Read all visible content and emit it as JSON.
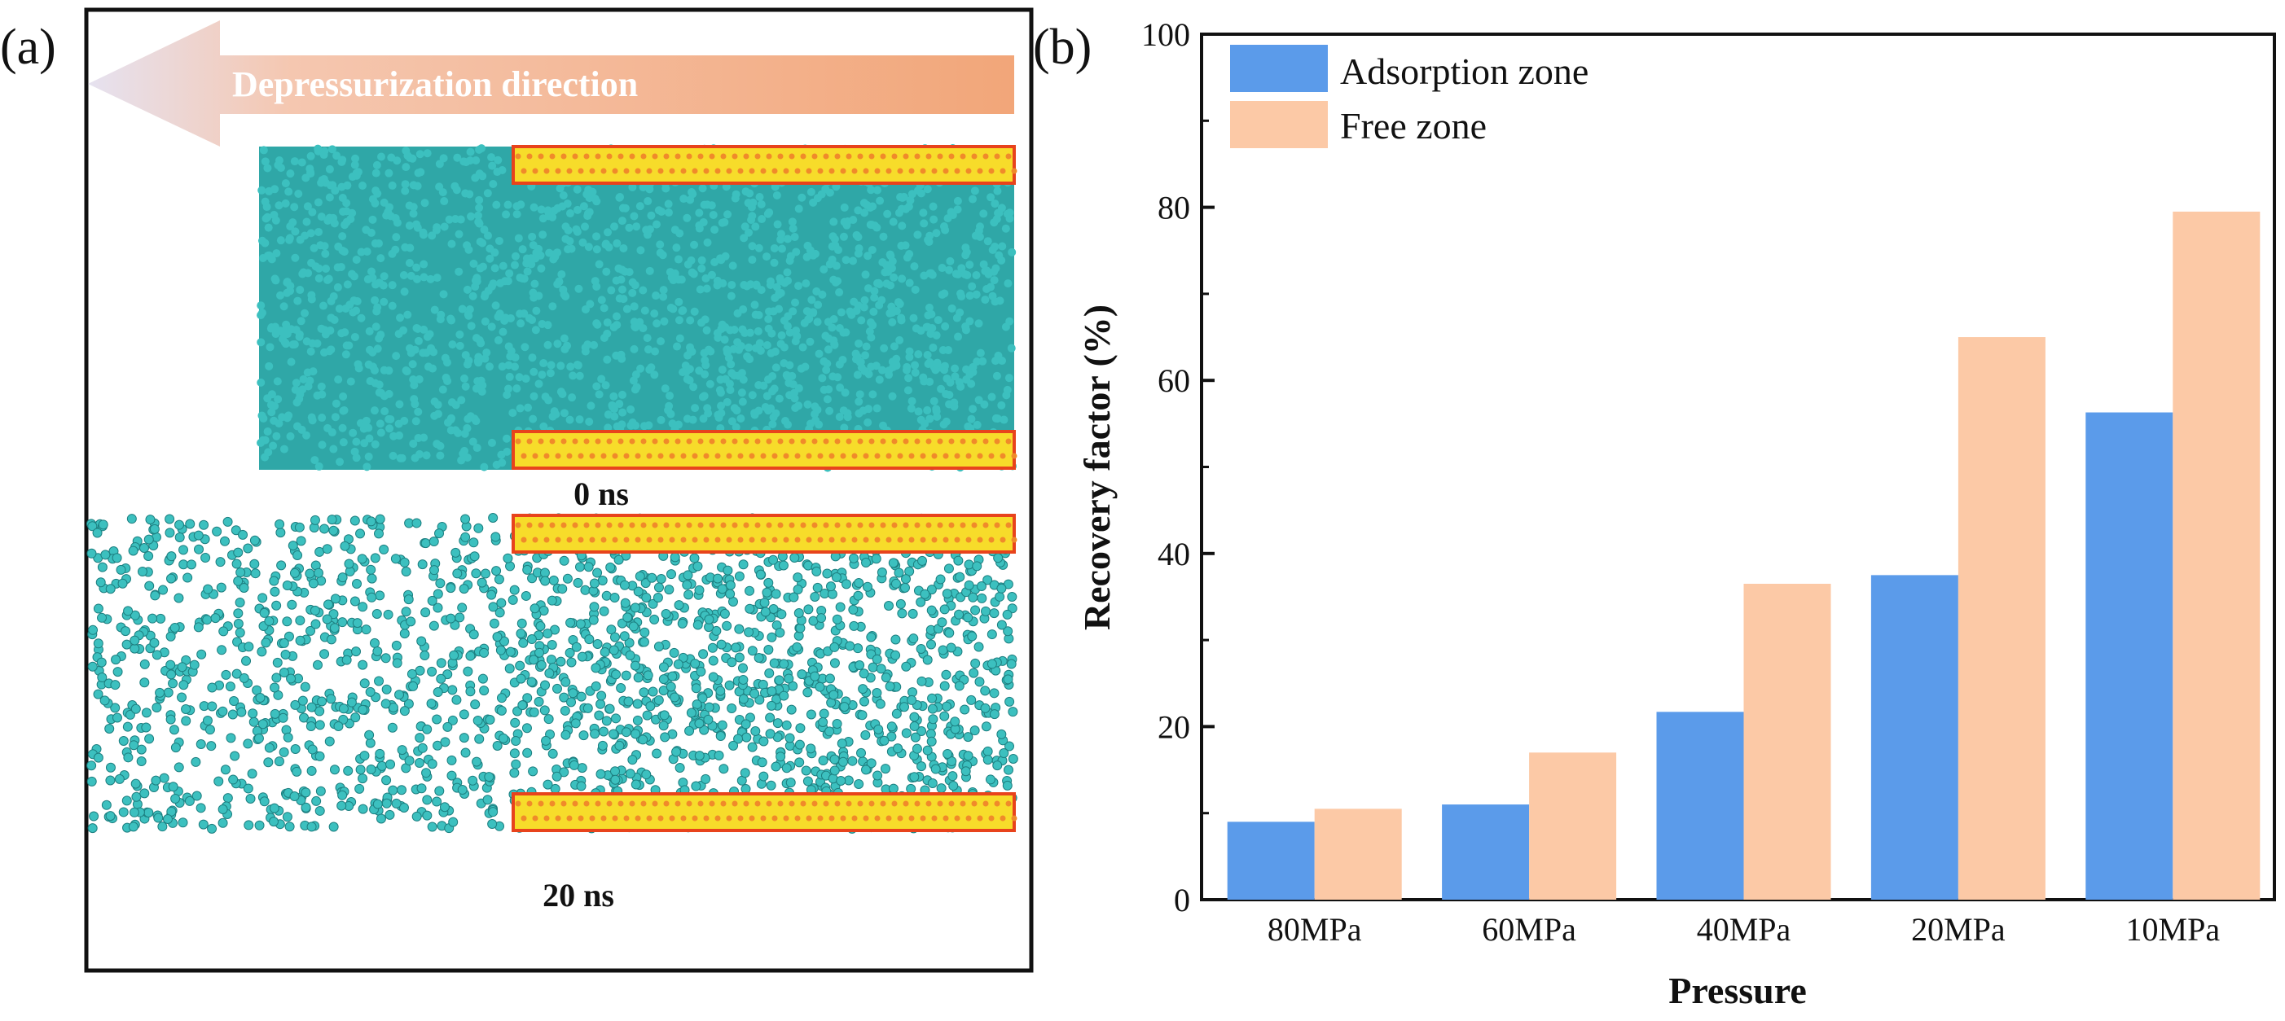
{
  "panel_a": {
    "label": "(a)",
    "arrow_text": "Depressurization direction",
    "time_0": "0 ns",
    "time_20": "20 ns"
  },
  "panel_b": {
    "label": "(b)"
  },
  "colors": {
    "adsorption": "#5b9bea",
    "free": "#fcc9a6",
    "molecule": "#3cc0bf",
    "wall": "#f7dc2a",
    "wall_edge": "#e8431c",
    "arrow": "#f2a679"
  },
  "chart_data": {
    "type": "bar",
    "categories": [
      "80MPa",
      "60MPa",
      "40MPa",
      "20MPa",
      "10MPa"
    ],
    "series": [
      {
        "name": "Adsorption zone",
        "values": [
          9,
          11,
          21.7,
          37.5,
          56.3
        ]
      },
      {
        "name": "Free zone",
        "values": [
          10.5,
          17,
          36.5,
          65,
          79.5
        ]
      }
    ],
    "title": "",
    "xlabel": "Pressure",
    "ylabel": "Recovery  factor (%)",
    "ylim": [
      0,
      100
    ],
    "yticks": [
      0,
      20,
      40,
      60,
      80,
      100
    ],
    "legend": "top-left",
    "grid": false
  }
}
